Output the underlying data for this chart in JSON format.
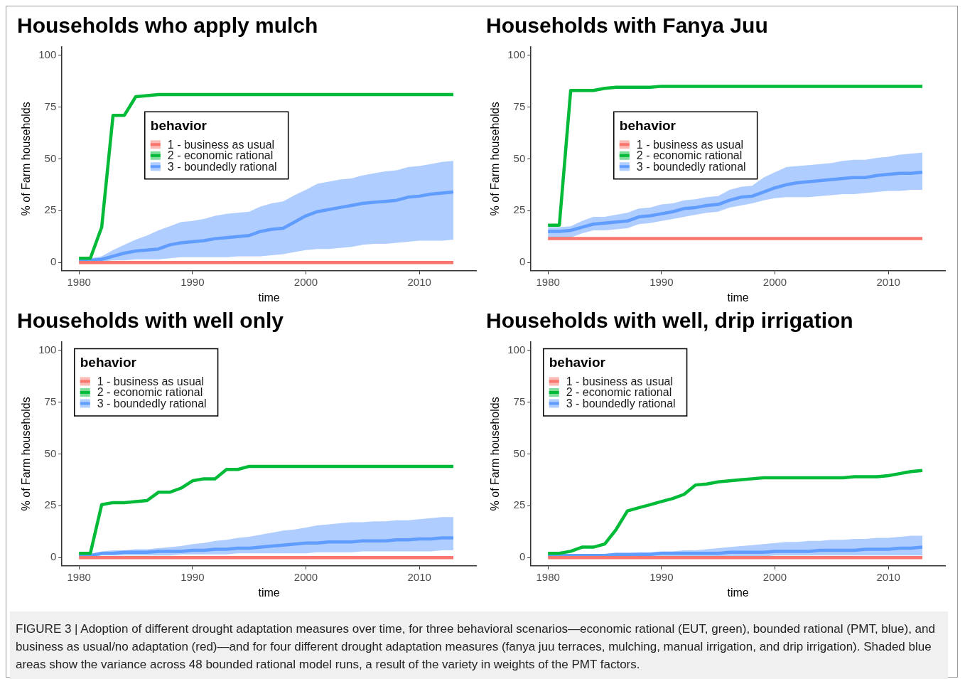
{
  "chart_data": [
    {
      "type": "line",
      "title": "Households who apply mulch",
      "xlabel": "time",
      "ylabel": "% of Farm households",
      "legend_title": "behavior",
      "legend": "top",
      "grid": false,
      "marker": "none",
      "line_style": "solid",
      "xlim": [
        1978.5,
        2015
      ],
      "xticks": [
        1980,
        1990,
        2000,
        2010
      ],
      "ylim": [
        -4,
        104
      ],
      "yticks": [
        0,
        25,
        50,
        75,
        100
      ],
      "x": [
        1980,
        1981,
        1982,
        1983,
        1984,
        1985,
        1986,
        1987,
        1988,
        1989,
        1990,
        1991,
        1992,
        1993,
        1994,
        1995,
        1996,
        1997,
        1998,
        1999,
        2000,
        2001,
        2002,
        2003,
        2004,
        2005,
        2006,
        2007,
        2008,
        2009,
        2010,
        2011,
        2012,
        2013
      ],
      "series": [
        {
          "name": "1 - business as usual",
          "color": "#f8766d",
          "values": [
            0,
            0,
            0,
            0,
            0,
            0,
            0,
            0,
            0,
            0,
            0,
            0,
            0,
            0,
            0,
            0,
            0,
            0,
            0,
            0,
            0,
            0,
            0,
            0,
            0,
            0,
            0,
            0,
            0,
            0,
            0,
            0,
            0,
            0
          ]
        },
        {
          "name": "2 - economic rational",
          "color": "#00ba38",
          "values": [
            2,
            2,
            17,
            71,
            71,
            80,
            80.5,
            81,
            81,
            81,
            81,
            81,
            81,
            81,
            81,
            81,
            81,
            81,
            81,
            81,
            81,
            81,
            81,
            81,
            81,
            81,
            81,
            81,
            81,
            81,
            81,
            81,
            81,
            81
          ]
        },
        {
          "name": "3 - boundedly rational",
          "color": "#619cff",
          "values": [
            1,
            1,
            1.5,
            3,
            4.5,
            5.5,
            6,
            6.5,
            8.5,
            9.5,
            10,
            10.5,
            11.5,
            12,
            12.5,
            13,
            15,
            16,
            16.5,
            19.5,
            22.5,
            24.5,
            25.5,
            26.5,
            27.5,
            28.5,
            29,
            29.5,
            30,
            31.5,
            32,
            33,
            33.5,
            34
          ],
          "upper": [
            2,
            2,
            3,
            6,
            8.5,
            11,
            13,
            15.5,
            17.5,
            19.5,
            20,
            21,
            22.5,
            23.5,
            24,
            24.5,
            27,
            28.5,
            29.5,
            32.5,
            35,
            38,
            39,
            40,
            40.5,
            42,
            43,
            44,
            44.5,
            46,
            46.5,
            47.5,
            48.5,
            49
          ],
          "lower": [
            0,
            0,
            0.5,
            1,
            1,
            1.5,
            1.5,
            1.5,
            2,
            2.5,
            2.5,
            2.5,
            2.5,
            2.5,
            3,
            3,
            3,
            3.5,
            4,
            5,
            6,
            6.5,
            6.5,
            7,
            7.5,
            8.5,
            9,
            9,
            9.5,
            10,
            10.5,
            10.5,
            10.5,
            11
          ]
        }
      ]
    },
    {
      "type": "line",
      "title": "Households with Fanya Juu",
      "xlabel": "time",
      "ylabel": "% of Farm households",
      "legend_title": "behavior",
      "legend": "top",
      "grid": false,
      "marker": "none",
      "line_style": "solid",
      "xlim": [
        1978.5,
        2015
      ],
      "xticks": [
        1980,
        1990,
        2000,
        2010
      ],
      "ylim": [
        -4,
        104
      ],
      "yticks": [
        0,
        25,
        50,
        75,
        100
      ],
      "x": [
        1980,
        1981,
        1982,
        1983,
        1984,
        1985,
        1986,
        1987,
        1988,
        1989,
        1990,
        1991,
        1992,
        1993,
        1994,
        1995,
        1996,
        1997,
        1998,
        1999,
        2000,
        2001,
        2002,
        2003,
        2004,
        2005,
        2006,
        2007,
        2008,
        2009,
        2010,
        2011,
        2012,
        2013
      ],
      "series": [
        {
          "name": "1 - business as usual",
          "color": "#f8766d",
          "values": [
            11.5,
            11.5,
            11.5,
            11.5,
            11.5,
            11.5,
            11.5,
            11.5,
            11.5,
            11.5,
            11.5,
            11.5,
            11.5,
            11.5,
            11.5,
            11.5,
            11.5,
            11.5,
            11.5,
            11.5,
            11.5,
            11.5,
            11.5,
            11.5,
            11.5,
            11.5,
            11.5,
            11.5,
            11.5,
            11.5,
            11.5,
            11.5,
            11.5,
            11.5
          ]
        },
        {
          "name": "2 - economic rational",
          "color": "#00ba38",
          "values": [
            18,
            18,
            83,
            83,
            83,
            84,
            84.5,
            84.5,
            84.5,
            84.5,
            85,
            85,
            85,
            85,
            85,
            85,
            85,
            85,
            85,
            85,
            85,
            85,
            85,
            85,
            85,
            85,
            85,
            85,
            85,
            85,
            85,
            85,
            85,
            85
          ]
        },
        {
          "name": "3 - boundedly rational",
          "color": "#619cff",
          "values": [
            15,
            15,
            15.5,
            17,
            18.5,
            19,
            19.5,
            20,
            22,
            22.5,
            23.5,
            24.5,
            26,
            26.5,
            27.5,
            28,
            30,
            31.5,
            32,
            34,
            36,
            37.5,
            38.5,
            39,
            39.5,
            40,
            40.5,
            41,
            41,
            42,
            42.5,
            43,
            43,
            43.5
          ],
          "upper": [
            17,
            17,
            17.5,
            20,
            22,
            22,
            23,
            24,
            26,
            26.5,
            28,
            28.5,
            30,
            30.5,
            31.5,
            32,
            35,
            36.5,
            37,
            41,
            43.5,
            46,
            46.5,
            47,
            47.5,
            48,
            49,
            49.5,
            49.5,
            50.5,
            51,
            52,
            52.5,
            53
          ],
          "lower": [
            11,
            11,
            12,
            14,
            15.5,
            15.5,
            16,
            16.5,
            18.5,
            19,
            20,
            21,
            22,
            23,
            24,
            24.5,
            26.5,
            27.5,
            28.5,
            30,
            31,
            31.5,
            31.5,
            31.5,
            32,
            32.5,
            33,
            33,
            33.5,
            34,
            34.5,
            34.5,
            35,
            35
          ]
        }
      ]
    },
    {
      "type": "line",
      "title": "Households with well only",
      "xlabel": "time",
      "ylabel": "% of Farm households",
      "legend_title": "behavior",
      "legend": "top left",
      "grid": false,
      "marker": "none",
      "line_style": "solid",
      "xlim": [
        1978.5,
        2015
      ],
      "xticks": [
        1980,
        1990,
        2000,
        2010
      ],
      "ylim": [
        -4,
        104
      ],
      "yticks": [
        0,
        25,
        50,
        75,
        100
      ],
      "x": [
        1980,
        1981,
        1982,
        1983,
        1984,
        1985,
        1986,
        1987,
        1988,
        1989,
        1990,
        1991,
        1992,
        1993,
        1994,
        1995,
        1996,
        1997,
        1998,
        1999,
        2000,
        2001,
        2002,
        2003,
        2004,
        2005,
        2006,
        2007,
        2008,
        2009,
        2010,
        2011,
        2012,
        2013
      ],
      "series": [
        {
          "name": "1 - business as usual",
          "color": "#f8766d",
          "values": [
            0,
            0,
            0,
            0,
            0,
            0,
            0,
            0,
            0,
            0,
            0,
            0,
            0,
            0,
            0,
            0,
            0,
            0,
            0,
            0,
            0,
            0,
            0,
            0,
            0,
            0,
            0,
            0,
            0,
            0,
            0,
            0,
            0,
            0
          ]
        },
        {
          "name": "2 - economic rational",
          "color": "#00ba38",
          "values": [
            2,
            2,
            25.5,
            26.5,
            26.5,
            27,
            27.5,
            31.5,
            31.5,
            33.5,
            37,
            38,
            38,
            42.5,
            42.5,
            44,
            44,
            44,
            44,
            44,
            44,
            44,
            44,
            44,
            44,
            44,
            44,
            44,
            44,
            44,
            44,
            44,
            44,
            44
          ]
        },
        {
          "name": "3 - boundedly rational",
          "color": "#619cff",
          "values": [
            1,
            1,
            2,
            2,
            2.5,
            2.5,
            2.5,
            3,
            3,
            3,
            3.5,
            3.5,
            4,
            4,
            4.5,
            4.5,
            5,
            5.5,
            6,
            6.5,
            7,
            7,
            7.5,
            7.5,
            7.5,
            8,
            8,
            8,
            8.5,
            8.5,
            9,
            9,
            9.5,
            9.5
          ],
          "upper": [
            1,
            1,
            3,
            3.5,
            3.5,
            4,
            4,
            4.5,
            5,
            5.5,
            6.5,
            7,
            8,
            8.5,
            9.5,
            10,
            11,
            12,
            13,
            13.5,
            14.5,
            15.5,
            16,
            16.5,
            17,
            17,
            17.5,
            17.5,
            18,
            18,
            18.5,
            19,
            19.5,
            19.5
          ],
          "lower": [
            0,
            0,
            1,
            1,
            1,
            1,
            1,
            1,
            1,
            1.5,
            1.5,
            1.5,
            1.5,
            1.5,
            2,
            2,
            2,
            2,
            2,
            2,
            2,
            2.5,
            2.5,
            2.5,
            2.5,
            3,
            3,
            3,
            3,
            3,
            3,
            3,
            3.5,
            3.5
          ]
        }
      ]
    },
    {
      "type": "line",
      "title": "Households with well, drip irrigation",
      "xlabel": "time",
      "ylabel": "% of Farm households",
      "legend_title": "behavior",
      "legend": "top left",
      "grid": false,
      "marker": "none",
      "line_style": "solid",
      "xlim": [
        1978.5,
        2015
      ],
      "xticks": [
        1980,
        1990,
        2000,
        2010
      ],
      "ylim": [
        -4,
        104
      ],
      "yticks": [
        0,
        25,
        50,
        75,
        100
      ],
      "x": [
        1980,
        1981,
        1982,
        1983,
        1984,
        1985,
        1986,
        1987,
        1988,
        1989,
        1990,
        1991,
        1992,
        1993,
        1994,
        1995,
        1996,
        1997,
        1998,
        1999,
        2000,
        2001,
        2002,
        2003,
        2004,
        2005,
        2006,
        2007,
        2008,
        2009,
        2010,
        2011,
        2012,
        2013
      ],
      "annotations": [
        "FIGURE 3 | Adoption of different drought adaptation measures over time, for three behavioral scenarios—economic rational (EUT, green), bounded rational (PMT, blue), and business as usual/no adaptation (red)—and for four different drought adaptation measures (fanya juu terraces, mulching, manual irrigation, and drip irrigation). Shaded blue areas show the variance across 48 bounded rational model runs, a result of the variety in weights of the PMT factors."
      ],
      "series": [
        {
          "name": "1 - business as usual",
          "color": "#f8766d",
          "values": [
            0,
            0,
            0,
            0,
            0,
            0,
            0,
            0,
            0,
            0,
            0,
            0,
            0,
            0,
            0,
            0,
            0,
            0,
            0,
            0,
            0,
            0,
            0,
            0,
            0,
            0,
            0,
            0,
            0,
            0,
            0,
            0,
            0,
            0
          ]
        },
        {
          "name": "2 - economic rational",
          "color": "#00ba38",
          "values": [
            2,
            2,
            3,
            5,
            5,
            6.5,
            13.5,
            22.5,
            24,
            25.5,
            27,
            28.5,
            30.5,
            35,
            35.5,
            36.5,
            37,
            37.5,
            38,
            38.5,
            38.5,
            38.5,
            38.5,
            38.5,
            38.5,
            38.5,
            38.5,
            39,
            39,
            39,
            39.5,
            40.5,
            41.5,
            42
          ]
        },
        {
          "name": "3 - boundedly rational",
          "color": "#619cff",
          "values": [
            1,
            1,
            1,
            1,
            1,
            1,
            1.5,
            1.5,
            1.5,
            1.5,
            2,
            2,
            2,
            2,
            2,
            2,
            2.5,
            2.5,
            2.5,
            2.5,
            3,
            3,
            3,
            3,
            3.5,
            3.5,
            3.5,
            3.5,
            4,
            4,
            4,
            4.5,
            4.5,
            5
          ],
          "upper": [
            1,
            1,
            1,
            1.5,
            1.5,
            1.5,
            2,
            2,
            2.5,
            2.5,
            3,
            3,
            3.5,
            3.5,
            4,
            4.5,
            5,
            5.5,
            6,
            6.5,
            7,
            7.5,
            7.5,
            8,
            8,
            8.5,
            8.5,
            9,
            9,
            9.5,
            9.5,
            10,
            10.5,
            10.5
          ],
          "lower": [
            0,
            0,
            0,
            0,
            0,
            0,
            0,
            0,
            0,
            0,
            0.5,
            0.5,
            0.5,
            0.5,
            0.5,
            0.5,
            0.5,
            0.5,
            0.5,
            0.5,
            1,
            1,
            1,
            1,
            1,
            1,
            1,
            1,
            1,
            1,
            1,
            1,
            1,
            1
          ]
        }
      ]
    }
  ]
}
